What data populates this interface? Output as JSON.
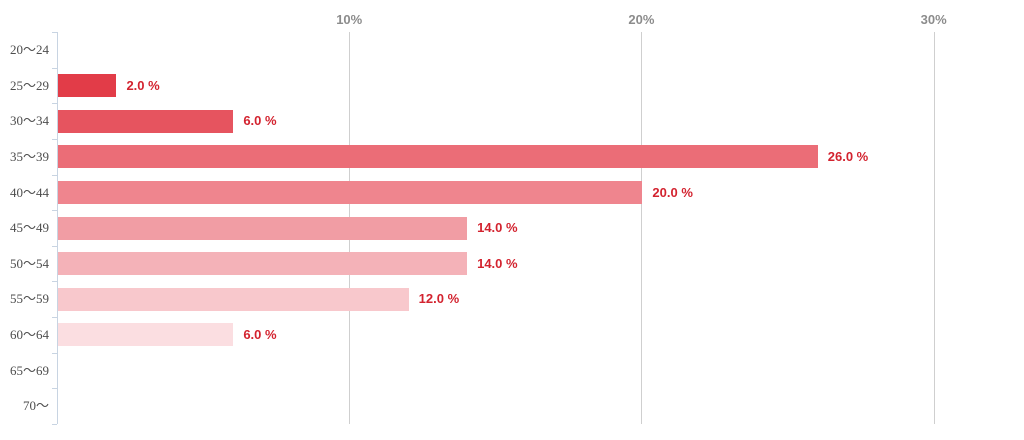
{
  "chart_data": {
    "type": "bar",
    "orientation": "horizontal",
    "title": "",
    "categories": [
      "20〜24",
      "25〜29",
      "30〜34",
      "35〜39",
      "40〜44",
      "45〜49",
      "50〜54",
      "55〜59",
      "60〜64",
      "65〜69",
      "70〜"
    ],
    "values": [
      0,
      2.0,
      6.0,
      26.0,
      20.0,
      14.0,
      14.0,
      12.0,
      6.0,
      0,
      0
    ],
    "value_labels": [
      "",
      "2.0 %",
      "6.0 %",
      "26.0 %",
      "20.0 %",
      "14.0 %",
      "14.0 %",
      "12.0 %",
      "6.0 %",
      "",
      ""
    ],
    "bar_colors": [
      null,
      "#e23c48",
      "#e6545f",
      "#eb6d77",
      "#ef858e",
      "#f19da4",
      "#f4b2b8",
      "#f8c8cc",
      "#fbdee1",
      null,
      null
    ],
    "x_ticks": [
      {
        "label": "10%",
        "value": 10
      },
      {
        "label": "20%",
        "value": 20
      },
      {
        "label": "30%",
        "value": 30
      }
    ],
    "xlim": [
      0,
      32.75
    ],
    "grid": "vertical-gridlines-at-ticks",
    "legend": false
  },
  "colors": {
    "background": "#ffffff",
    "value_label": "#d3232f",
    "category_label": "#4d4d4d",
    "tick_label": "#8c8c8c",
    "gridline": "#cfcfcf",
    "axis_line": "#c8d4e2"
  }
}
